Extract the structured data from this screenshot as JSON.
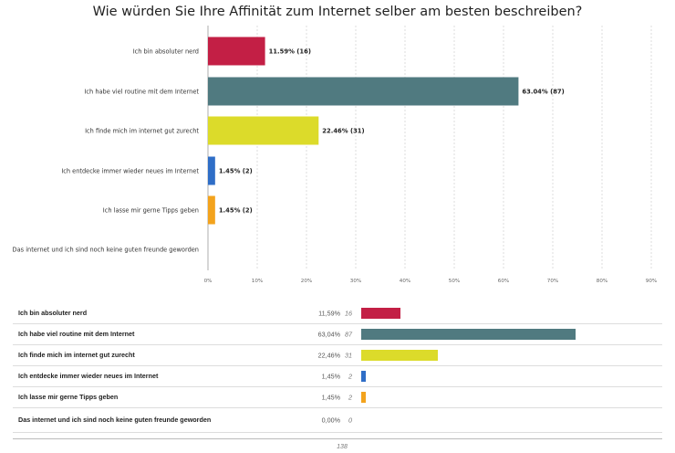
{
  "chart_data": {
    "type": "bar",
    "orientation": "horizontal",
    "title": "Wie würden Sie Ihre Affinität zum Internet selber am besten beschreiben?",
    "categories": [
      "Ich bin absoluter nerd",
      "Ich habe viel routine mit dem Internet",
      "Ich finde mich im internet gut zurecht",
      "Ich entdecke immer wieder neues im Internet",
      "Ich lasse mir gerne Tipps geben",
      "Das internet und ich sind noch keine guten freunde geworden"
    ],
    "values": [
      11.59,
      63.04,
      22.46,
      1.45,
      1.45,
      0
    ],
    "counts": [
      16,
      87,
      31,
      2,
      2,
      0
    ],
    "value_labels": [
      "11.59% (16)",
      "63.04% (87)",
      "22.46% (31)",
      "1.45% (2)",
      "1.45% (2)",
      ""
    ],
    "colors": [
      "#c31f45",
      "#507a80",
      "#dcdb2a",
      "#2f6ec7",
      "#f3a31d",
      "#999999"
    ],
    "xlim": [
      0,
      90
    ],
    "xticks": [
      "0%",
      "10%",
      "20%",
      "30%",
      "40%",
      "50%",
      "60%",
      "70%",
      "80%",
      "90%"
    ],
    "grid": true,
    "grid_style": "dashed"
  },
  "table": {
    "rows": [
      {
        "label": "Ich bin absoluter nerd",
        "percent": "11,59%",
        "count": "16",
        "value": 11.59
      },
      {
        "label": "Ich habe viel routine mit dem Internet",
        "percent": "63,04%",
        "count": "87",
        "value": 63.04
      },
      {
        "label": "Ich finde mich im internet gut zurecht",
        "percent": "22,46%",
        "count": "31",
        "value": 22.46
      },
      {
        "label": "Ich entdecke immer wieder neues im Internet",
        "percent": "1,45%",
        "count": "2",
        "value": 1.45
      },
      {
        "label": "Ich lasse mir gerne Tipps geben",
        "percent": "1,45%",
        "count": "2",
        "value": 1.45
      },
      {
        "label": "Das internet und ich sind noch keine guten freunde geworden",
        "percent": "0,00%",
        "count": "0",
        "value": 0
      }
    ],
    "total": "138"
  }
}
